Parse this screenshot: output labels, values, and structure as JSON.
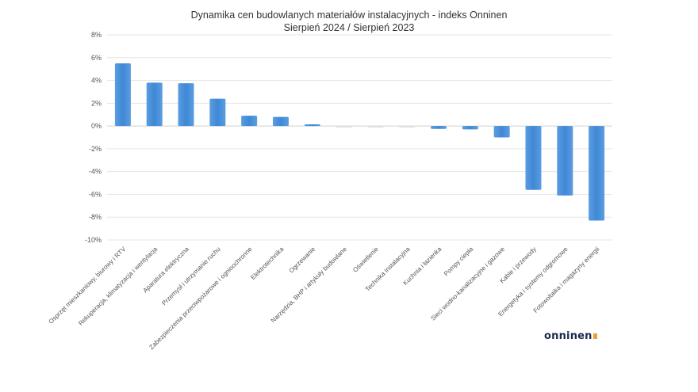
{
  "chart_data": {
    "type": "bar",
    "title": "Dynamika cen budowlanych materiałów instalacyjnych - indeks Onninen",
    "subtitle": "Sierpień 2024 / Sierpień 2023",
    "xlabel": "",
    "ylabel": "",
    "ylim": [
      -10,
      8
    ],
    "yticks": [
      8,
      6,
      4,
      2,
      0,
      -2,
      -4,
      -6,
      -8,
      -10
    ],
    "ytick_labels": [
      "8%",
      "6%",
      "4%",
      "2%",
      "0%",
      "-2%",
      "-4%",
      "-6%",
      "-8%",
      "-10%"
    ],
    "grid": true,
    "bar_color": "#4a90d9",
    "categories": [
      "Osprzęt mieszkaniowy, biurowy i RTV",
      "Rekuperacja, klimatyzacja i wentylacja",
      "Aparatura elektryczna",
      "Przemysł i utrzymanie ruchu",
      "Zabezpieczenia przeciwpożarowe i ognioochronne",
      "Elektrotechnika",
      "Ogrzewanie",
      "Narzędzia, BHP i artykuły budowlane",
      "Oświetlenie",
      "Technika instalacyjna",
      "Kuchnia i łazienka",
      "Pompy ciepła",
      "Sieci wodno-kanalizacyjne i gazowe",
      "Kable i przewody",
      "Energetyka i systemy odgromowe",
      "Fotowoltaika i magazyny energii"
    ],
    "values": [
      5.5,
      3.8,
      3.75,
      2.4,
      0.9,
      0.8,
      0.15,
      -0.05,
      -0.05,
      -0.05,
      -0.25,
      -0.3,
      -1.0,
      -5.6,
      -6.1,
      -8.3
    ]
  },
  "logo": {
    "text": "onninen"
  }
}
